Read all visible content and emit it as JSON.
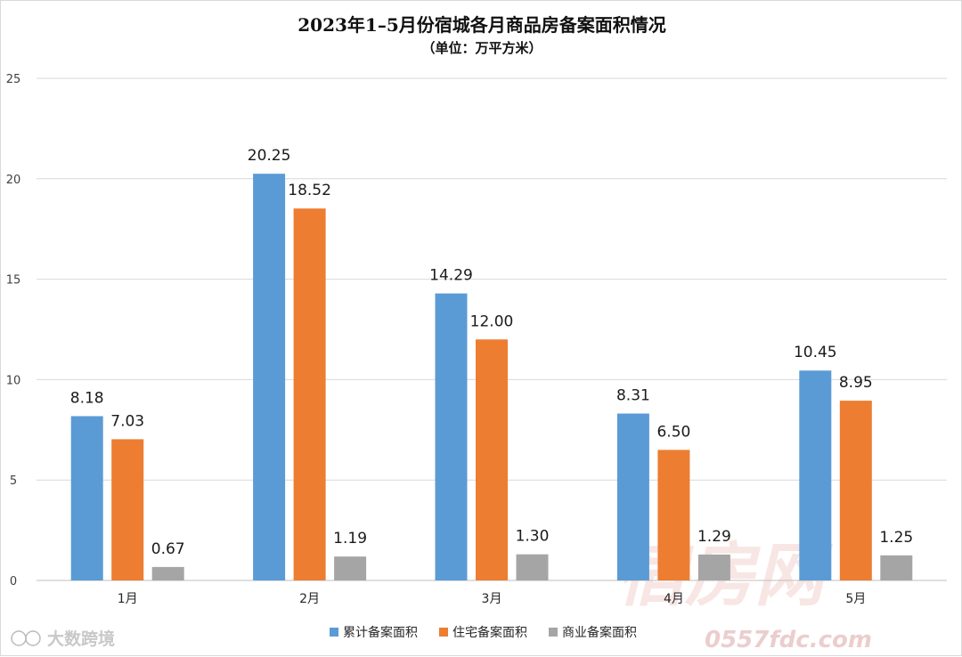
{
  "chart_data": {
    "type": "bar",
    "title": "2023年1–5月份宿城各月商品房备案面积情况",
    "subtitle": "（单位：万平方米）",
    "categories": [
      "1月",
      "2月",
      "3月",
      "4月",
      "5月"
    ],
    "series": [
      {
        "name": "累计备案面积",
        "color": "#5B9BD5",
        "values": [
          8.18,
          20.25,
          14.29,
          8.31,
          10.45
        ],
        "labels": [
          "8.18",
          "20.25",
          "14.29",
          "8.31",
          "10.45"
        ]
      },
      {
        "name": "住宅备案面积",
        "color": "#ED7D31",
        "values": [
          7.03,
          18.52,
          12.0,
          6.5,
          8.95
        ],
        "labels": [
          "7.03",
          "18.52",
          "12.00",
          "6.50",
          "8.95"
        ]
      },
      {
        "name": "商业备案面积",
        "color": "#A5A5A5",
        "values": [
          0.67,
          1.19,
          1.3,
          1.29,
          1.25
        ],
        "labels": [
          "0.67",
          "1.19",
          "1.30",
          "1.29",
          "1.25"
        ]
      }
    ],
    "yticks": [
      "0",
      "5",
      "10",
      "15",
      "20",
      "25"
    ],
    "ylim": [
      0,
      25
    ],
    "grid": true,
    "legend_position": "bottom"
  },
  "watermarks": {
    "bottom_left": "大数跨境",
    "bottom_right_url": "0557fdc.com",
    "bottom_right_logo": "宿房网"
  }
}
